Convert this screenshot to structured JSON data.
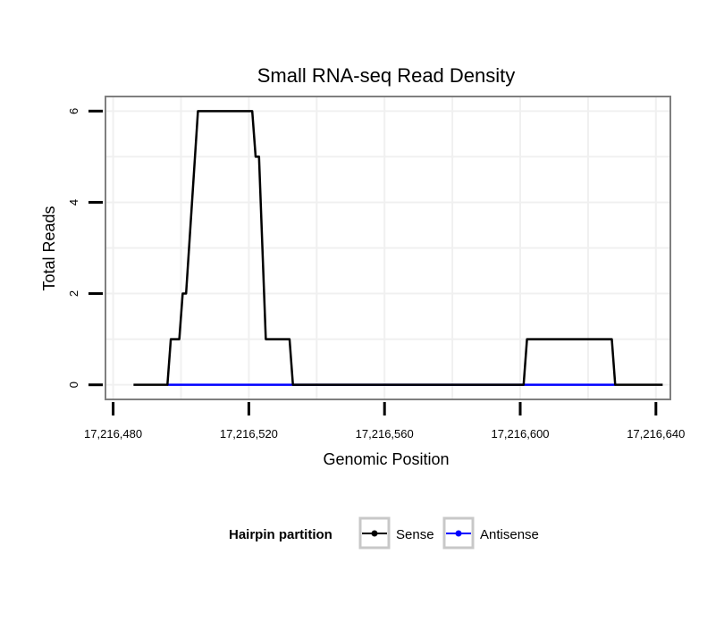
{
  "chart_data": {
    "type": "line",
    "title": "Small RNA-seq Read Density",
    "xlabel": "Genomic Position",
    "ylabel": "Total Reads",
    "xlim": [
      17216478,
      17216644
    ],
    "ylim": [
      -0.3,
      6.3
    ],
    "x_ticks": [
      17216480,
      17216520,
      17216560,
      17216600,
      17216640
    ],
    "x_tick_labels": [
      "17,216,480",
      "17,216,520",
      "17,216,560",
      "17,216,600",
      "17,216,640"
    ],
    "y_ticks": [
      0,
      2,
      4,
      6
    ],
    "y_tick_labels": [
      "0",
      "2",
      "4",
      "6"
    ],
    "grid": true,
    "legend": {
      "title": "Hairpin partition",
      "position": "bottom"
    },
    "series": [
      {
        "name": "Sense",
        "color": "#000000",
        "points": [
          [
            17216486,
            0
          ],
          [
            17216496,
            0
          ],
          [
            17216497,
            1
          ],
          [
            17216499.5,
            1
          ],
          [
            17216500.5,
            2
          ],
          [
            17216501.5,
            2
          ],
          [
            17216505,
            6
          ],
          [
            17216521,
            6
          ],
          [
            17216522,
            5
          ],
          [
            17216523,
            5
          ],
          [
            17216525,
            1
          ],
          [
            17216532,
            1
          ],
          [
            17216533,
            0
          ],
          [
            17216601,
            0
          ],
          [
            17216602,
            1
          ],
          [
            17216627,
            1
          ],
          [
            17216628,
            0
          ],
          [
            17216642,
            0
          ]
        ]
      },
      {
        "name": "Antisense",
        "color": "#0000ff",
        "points": [
          [
            17216496,
            0
          ],
          [
            17216533,
            0
          ],
          [
            17216601,
            0
          ],
          [
            17216628,
            0
          ]
        ]
      }
    ]
  }
}
